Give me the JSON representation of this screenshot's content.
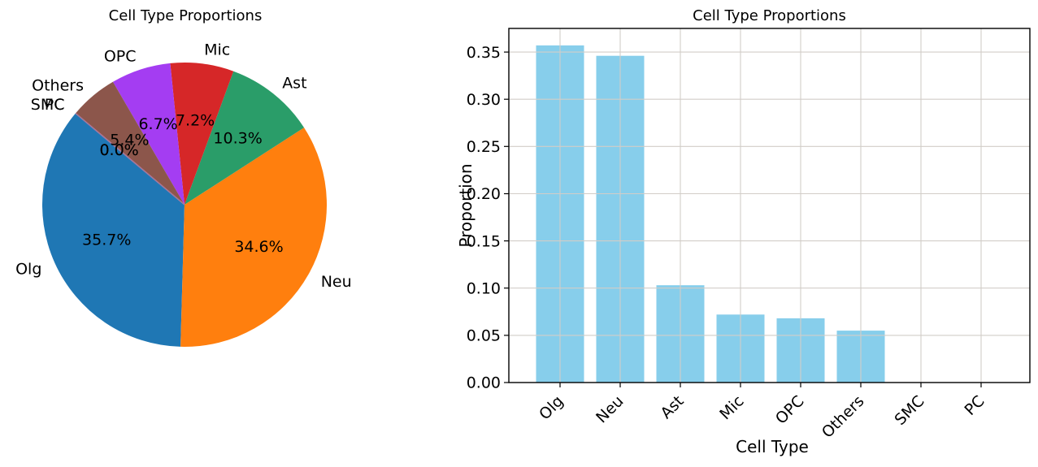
{
  "figure": {
    "background": "#ffffff",
    "text_color": "#000000",
    "axis_color": "#000000",
    "grid_color": "#d2cdc8"
  },
  "chart_data": [
    {
      "type": "pie",
      "title": "Cell Type Proportions",
      "labels": [
        "Olg",
        "Neu",
        "Ast",
        "Mic",
        "OPC",
        "Others",
        "SMC",
        "PC"
      ],
      "values": [
        0.357,
        0.346,
        0.103,
        0.072,
        0.068,
        0.055,
        0.0,
        0.0
      ],
      "pct_labels": [
        "35.7%",
        "34.6%",
        "10.3%",
        "7.2%",
        "6.7%",
        "5.4%",
        "0.0%",
        "0.0%"
      ],
      "colors": [
        "#1f77b4",
        "#ff7f0e",
        "#2a9d69",
        "#d62728",
        "#a43df2",
        "#8c564b",
        "#e377c2",
        "#7f7f7f"
      ],
      "start_angle": 140,
      "direction": "counterclockwise",
      "label_distance": 1.1,
      "pct_distance": 0.6
    },
    {
      "type": "bar",
      "title": "Cell Type Proportions",
      "xlabel": "Cell Type",
      "ylabel": "Proportion",
      "categories": [
        "Olg",
        "Neu",
        "Ast",
        "Mic",
        "OPC",
        "Others",
        "SMC",
        "PC"
      ],
      "values": [
        0.357,
        0.346,
        0.103,
        0.072,
        0.068,
        0.055,
        0.0,
        0.0
      ],
      "bar_color": "#87ceeb",
      "ylim": [
        0,
        0.375
      ],
      "yticks": [
        "0.00",
        "0.05",
        "0.10",
        "0.15",
        "0.20",
        "0.25",
        "0.30",
        "0.35"
      ],
      "grid": true,
      "tick_rotation": 45,
      "legend": "none"
    }
  ]
}
